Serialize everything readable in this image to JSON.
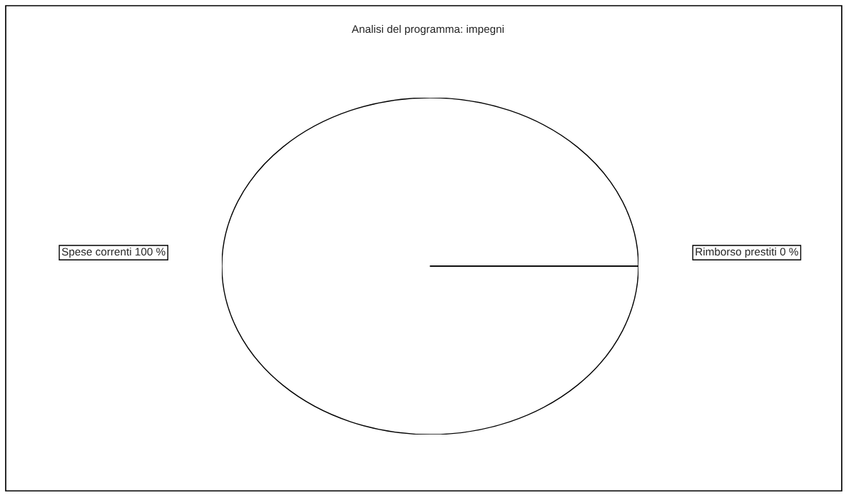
{
  "chart_data": {
    "type": "pie",
    "title": "Analisi del programma: impegni",
    "categories": [
      "Spese correnti",
      "Rimborso prestiti"
    ],
    "values": [
      100,
      0
    ],
    "value_labels": [
      "100 %",
      "0 %"
    ],
    "colors": [
      "#ffffff",
      "#ffffff"
    ]
  }
}
